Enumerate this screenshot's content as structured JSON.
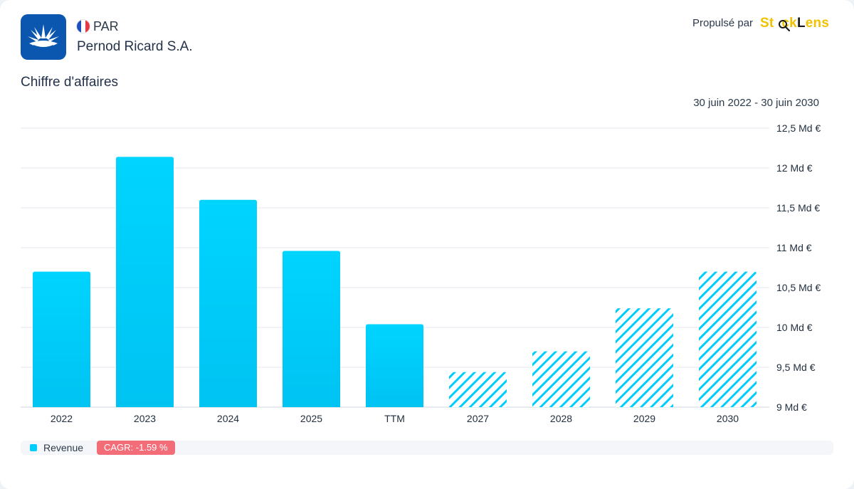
{
  "header": {
    "exchange": "PAR",
    "company": "Pernod Ricard S.A.",
    "powered_by": "Propulsé par",
    "brand": {
      "part1": "St",
      "part2": "ck",
      "part3": "Lens"
    },
    "logo_icon": "pernod-ricard-logo",
    "flag_icon": "france-flag-icon"
  },
  "colors": {
    "accent": "#00cdfb",
    "logo_bg": "#0b57b0",
    "brand_yellow": "#f2c200",
    "cagr_bg": "#f26d78"
  },
  "chart_data": {
    "type": "bar",
    "title": "Chiffre d'affaires",
    "date_range": "30 juin 2022 - 30 juin 2030",
    "categories": [
      "2022",
      "2023",
      "2024",
      "2025",
      "TTM",
      "2027",
      "2028",
      "2029",
      "2030"
    ],
    "series": [
      {
        "name": "Revenue",
        "values": [
          10.7,
          12.14,
          11.6,
          10.96,
          10.04,
          9.44,
          9.7,
          10.24,
          10.7
        ],
        "estimated": [
          false,
          false,
          false,
          false,
          false,
          true,
          true,
          true,
          true
        ]
      }
    ],
    "ylim": [
      9,
      12.5
    ],
    "yticks": [
      {
        "value": 12.5,
        "label": "12,5 Md €"
      },
      {
        "value": 12,
        "label": "12 Md €"
      },
      {
        "value": 11.5,
        "label": "11,5 Md €"
      },
      {
        "value": 11,
        "label": "11 Md €"
      },
      {
        "value": 10.5,
        "label": "10,5 Md €"
      },
      {
        "value": 10,
        "label": "10 Md €"
      },
      {
        "value": 9.5,
        "label": "9,5 Md €"
      },
      {
        "value": 9,
        "label": "9 Md €"
      }
    ],
    "grid": true,
    "legend_position": "bottom-left"
  },
  "legend": {
    "label": "Revenue",
    "cagr": "CAGR: -1.59 %"
  }
}
